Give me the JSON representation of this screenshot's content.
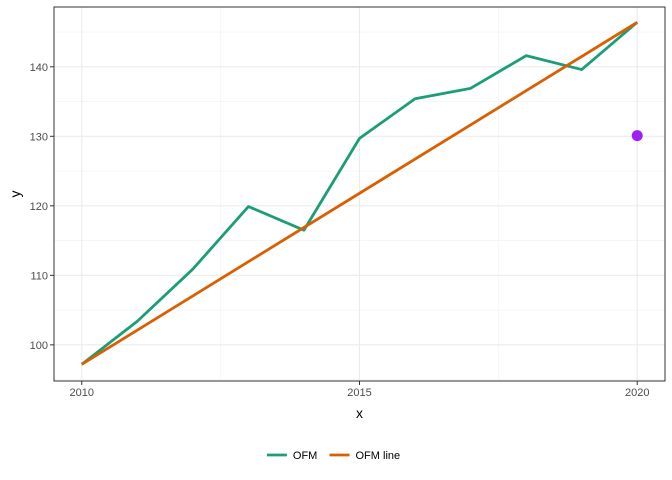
{
  "chart_data": {
    "type": "line",
    "xlabel": "x",
    "ylabel": "y",
    "xlim": [
      2009.5,
      2020.5
    ],
    "ylim": [
      94.8,
      148.6
    ],
    "x_ticks": [
      2010,
      2015,
      2020
    ],
    "y_ticks": [
      100,
      110,
      120,
      130,
      140
    ],
    "grid": true,
    "legend_position": "bottom",
    "series": [
      {
        "name": "OFM",
        "color": "#1b9e77",
        "x": [
          2010,
          2011,
          2012,
          2013,
          2014,
          2015,
          2016,
          2017,
          2018,
          2019,
          2020
        ],
        "y": [
          97.2,
          103.4,
          110.9,
          119.9,
          116.5,
          129.7,
          135.4,
          136.9,
          141.6,
          139.6,
          146.4
        ]
      },
      {
        "name": "OFM line",
        "color": "#d95f02",
        "x": [
          2010,
          2020
        ],
        "y": [
          97.2,
          146.4
        ]
      }
    ],
    "points": [
      {
        "x": 2020,
        "y": 130.1,
        "color": "#a020f0"
      }
    ]
  }
}
